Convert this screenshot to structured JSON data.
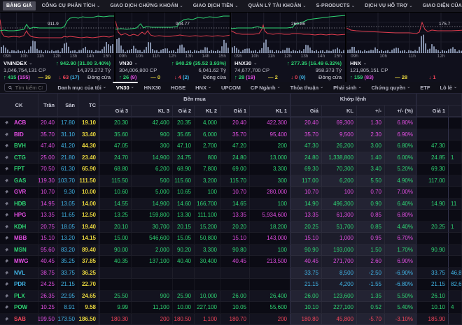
{
  "menu": {
    "items": [
      {
        "label": "BẢNG GIÁ",
        "chev": false,
        "active": true
      },
      {
        "label": "CÔNG CỤ PHÂN TÍCH",
        "chev": true,
        "active": false
      },
      {
        "label": "GIAO DỊCH CHỨNG KHOÁN",
        "chev": true,
        "active": false
      },
      {
        "label": "GIAO DỊCH TIỀN",
        "chev": true,
        "active": false
      },
      {
        "label": "QUẢN LÝ TÀI KHOẢN",
        "chev": true,
        "active": false
      },
      {
        "label": "S-PRODUCTS",
        "chev": true,
        "active": false
      },
      {
        "label": "DỊCH VỤ HỖ TRỢ",
        "chev": true,
        "active": false
      },
      {
        "label": "GIAO DIỆN CỦA TÔI",
        "chev": false,
        "active": false
      }
    ]
  },
  "panels": [
    {
      "name": "VNINDEX",
      "ref_label": "911.9",
      "change": "↑ 942.90 (31.00 3.40%)",
      "volume": "1,046,754,131 CP",
      "value": "14,373.272 Tỷ",
      "up": "↑ 415",
      "up_ceil": "(155)",
      "flat": "39",
      "down": "↓ 63",
      "down_floor": "(17)",
      "status": "Đóng cửa",
      "times": [
        "09h",
        "10h",
        "11h",
        "12h",
        "13h",
        "14h",
        "15h"
      ]
    },
    {
      "name": "VN30",
      "ref_label": "904.77",
      "change": "↑ 940.29 (35.52 3.93%)",
      "volume": "304,006,800 CP",
      "value": "6,041.62 Tỷ",
      "up": "↑ 26",
      "up_ceil": "(9)",
      "flat": "0",
      "down": "↓ 4",
      "down_floor": "(2)",
      "status": "Đóng cửa",
      "times": [
        "09h",
        "10h",
        "11h",
        "12h",
        "13h",
        "14h",
        "15h"
      ]
    },
    {
      "name": "HNX30",
      "ref_label": "260.86",
      "change": "↑ 277.35 (16.49 6.32%)",
      "volume": "74,677,700 CP",
      "value": "958.373 Tỷ",
      "up": "↑ 28",
      "up_ceil": "(19)",
      "flat": "2",
      "down": "↓ 0",
      "down_floor": "(0)",
      "status": "Đóng cửa",
      "times": [
        "09h",
        "10h",
        "11h",
        "12h",
        "13h",
        "14h",
        "15h"
      ]
    },
    {
      "name": "HNX",
      "ref_label": "175.7",
      "change": "",
      "volume": "121,805,151 CP",
      "value": "",
      "up": "↑ 159",
      "up_ceil": "(83)",
      "flat": "28",
      "down": "↓ 1",
      "down_floor": "",
      "status": "",
      "times": [
        "09h",
        "10h",
        "11h",
        "12h"
      ]
    }
  ],
  "tabbar": {
    "search_placeholder": "Tìm kiếm CK",
    "tabs": [
      {
        "label": "Danh mục của tôi",
        "chev": true,
        "active": false
      },
      {
        "label": "VN30",
        "chev": true,
        "active": true
      },
      {
        "label": "HNX30",
        "chev": false,
        "active": false
      },
      {
        "label": "HOSE",
        "chev": false,
        "active": false
      },
      {
        "label": "HNX",
        "chev": true,
        "active": false
      },
      {
        "label": "UPCOM",
        "chev": false,
        "active": false
      },
      {
        "label": "CP Ngành",
        "chev": true,
        "active": false
      },
      {
        "label": "Thỏa thuận",
        "chev": true,
        "active": false
      },
      {
        "label": "Phái sinh",
        "chev": true,
        "active": false
      },
      {
        "label": "Chứng quyền",
        "chev": true,
        "active": false
      },
      {
        "label": "ETF",
        "chev": false,
        "active": false
      },
      {
        "label": "Lô lẻ",
        "chev": true,
        "active": false
      }
    ]
  },
  "table": {
    "groups": {
      "buy": "Bên mua",
      "matched": "Khớp lệnh",
      "sell": ""
    },
    "cols": {
      "ck": "CK",
      "tran": "Trần",
      "san": "Sàn",
      "tc": "TC",
      "g3": "Giá 3",
      "k3": "KL 3",
      "g2": "Giá 2",
      "k2": "KL 2",
      "g1": "Giá 1",
      "k1": "KL 1",
      "gia": "Giá",
      "kl": "KL",
      "chg": "+/-",
      "pct": "+/- (%)",
      "sg1": "Giá 1",
      "sk1": ""
    },
    "rows": [
      {
        "t": "ACB",
        "k": "m",
        "v": [
          "20.40",
          "17.80",
          "19.10",
          "20.30",
          "42,400",
          "20.35",
          "4,000",
          "20.40",
          "422,300",
          "20.40",
          "69,300",
          "1.30",
          "6.80%",
          "",
          ""
        ],
        "c": [
          "m",
          "c",
          "y",
          "g",
          "g",
          "g",
          "g",
          "m",
          "m",
          "m",
          "m",
          "m",
          "m",
          "g",
          "g"
        ]
      },
      {
        "t": "BID",
        "k": "m",
        "v": [
          "35.70",
          "31.10",
          "33.40",
          "35.60",
          "900",
          "35.65",
          "6,000",
          "35.70",
          "95,400",
          "35.70",
          "9,500",
          "2.30",
          "6.90%",
          "",
          ""
        ],
        "c": [
          "m",
          "c",
          "y",
          "g",
          "g",
          "g",
          "g",
          "m",
          "m",
          "m",
          "m",
          "m",
          "m",
          "g",
          "g"
        ]
      },
      {
        "t": "BVH",
        "k": "g",
        "v": [
          "47.40",
          "41.20",
          "44.30",
          "47.05",
          "300",
          "47.10",
          "2,700",
          "47.20",
          "200",
          "47.30",
          "26,200",
          "3.00",
          "6.80%",
          "47.30",
          ""
        ],
        "c": [
          "m",
          "c",
          "y",
          "g",
          "g",
          "g",
          "g",
          "g",
          "g",
          "g",
          "g",
          "g",
          "g",
          "g",
          "g"
        ]
      },
      {
        "t": "CTG",
        "k": "g",
        "v": [
          "25.00",
          "21.80",
          "23.40",
          "24.70",
          "14,900",
          "24.75",
          "800",
          "24.80",
          "13,000",
          "24.80",
          "1,338,800",
          "1.40",
          "6.00%",
          "24.85",
          "1"
        ],
        "c": [
          "m",
          "c",
          "y",
          "g",
          "g",
          "g",
          "g",
          "g",
          "g",
          "g",
          "g",
          "g",
          "g",
          "g",
          "g"
        ]
      },
      {
        "t": "FPT",
        "k": "g",
        "v": [
          "70.50",
          "61.30",
          "65.90",
          "68.80",
          "6,200",
          "68.90",
          "7,800",
          "69.00",
          "3,300",
          "69.30",
          "70,300",
          "3.40",
          "5.20%",
          "69.30",
          ""
        ],
        "c": [
          "m",
          "c",
          "y",
          "g",
          "g",
          "g",
          "g",
          "g",
          "g",
          "g",
          "g",
          "g",
          "g",
          "g",
          "g"
        ]
      },
      {
        "t": "GAS",
        "k": "g",
        "v": [
          "119.30",
          "103.70",
          "111.50",
          "115.50",
          "500",
          "115.60",
          "3,200",
          "115.70",
          "300",
          "117.00",
          "6,200",
          "5.50",
          "4.90%",
          "117.00",
          ""
        ],
        "c": [
          "m",
          "c",
          "y",
          "g",
          "g",
          "g",
          "g",
          "g",
          "g",
          "g",
          "g",
          "g",
          "g",
          "g",
          "g"
        ]
      },
      {
        "t": "GVR",
        "k": "m",
        "v": [
          "10.70",
          "9.30",
          "10.00",
          "10.60",
          "5,000",
          "10.65",
          "100",
          "10.70",
          "280,000",
          "10.70",
          "100",
          "0.70",
          "7.00%",
          "",
          ""
        ],
        "c": [
          "m",
          "c",
          "y",
          "g",
          "g",
          "g",
          "g",
          "m",
          "m",
          "m",
          "m",
          "m",
          "m",
          "g",
          "g"
        ]
      },
      {
        "t": "HDB",
        "k": "g",
        "v": [
          "14.95",
          "13.05",
          "14.00",
          "14.55",
          "14,900",
          "14.60",
          "166,700",
          "14.65",
          "100",
          "14.90",
          "496,300",
          "0.90",
          "6.40%",
          "14.90",
          "11"
        ],
        "c": [
          "m",
          "c",
          "y",
          "g",
          "g",
          "g",
          "g",
          "g",
          "g",
          "g",
          "g",
          "g",
          "g",
          "g",
          "g"
        ]
      },
      {
        "t": "HPG",
        "k": "m",
        "v": [
          "13.35",
          "11.65",
          "12.50",
          "13.25",
          "159,800",
          "13.30",
          "111,100",
          "13.35",
          "5,934,600",
          "13.35",
          "61,300",
          "0.85",
          "6.80%",
          "",
          ""
        ],
        "c": [
          "m",
          "c",
          "y",
          "g",
          "g",
          "g",
          "g",
          "m",
          "m",
          "m",
          "m",
          "m",
          "m",
          "g",
          "g"
        ]
      },
      {
        "t": "KDH",
        "k": "g",
        "v": [
          "20.75",
          "18.05",
          "19.40",
          "20.10",
          "30,700",
          "20.15",
          "15,200",
          "20.20",
          "18,200",
          "20.25",
          "51,700",
          "0.85",
          "4.40%",
          "20.25",
          "1"
        ],
        "c": [
          "m",
          "c",
          "y",
          "g",
          "g",
          "g",
          "g",
          "g",
          "g",
          "g",
          "g",
          "g",
          "g",
          "g",
          "g"
        ]
      },
      {
        "t": "MBB",
        "k": "m",
        "v": [
          "15.10",
          "13.20",
          "14.15",
          "15.00",
          "546,600",
          "15.05",
          "50,800",
          "15.10",
          "143,000",
          "15.10",
          "1,000",
          "0.95",
          "6.70%",
          "",
          ""
        ],
        "c": [
          "m",
          "c",
          "y",
          "g",
          "g",
          "g",
          "g",
          "m",
          "m",
          "m",
          "m",
          "m",
          "m",
          "g",
          "g"
        ]
      },
      {
        "t": "MSN",
        "k": "g",
        "v": [
          "95.60",
          "83.20",
          "89.40",
          "90.00",
          "2,000",
          "90.20",
          "3,300",
          "90.80",
          "100",
          "90.90",
          "193,000",
          "1.50",
          "1.70%",
          "90.90",
          ""
        ],
        "c": [
          "m",
          "c",
          "y",
          "g",
          "g",
          "g",
          "g",
          "g",
          "g",
          "g",
          "g",
          "g",
          "g",
          "g",
          "g"
        ]
      },
      {
        "t": "MWG",
        "k": "m",
        "v": [
          "40.45",
          "35.25",
          "37.85",
          "40.35",
          "137,100",
          "40.40",
          "30,400",
          "40.45",
          "213,500",
          "40.45",
          "271,700",
          "2.60",
          "6.90%",
          "",
          ""
        ],
        "c": [
          "m",
          "c",
          "y",
          "g",
          "g",
          "g",
          "g",
          "m",
          "m",
          "m",
          "m",
          "m",
          "m",
          "g",
          "g"
        ]
      },
      {
        "t": "NVL",
        "k": "c",
        "v": [
          "38.75",
          "33.75",
          "36.25",
          "",
          "",
          "",
          "",
          "",
          "",
          "33.75",
          "8,500",
          "-2.50",
          "-6.90%",
          "33.75",
          "46,8"
        ],
        "c": [
          "m",
          "c",
          "y",
          "c",
          "c",
          "c",
          "c",
          "c",
          "c",
          "c",
          "c",
          "c",
          "c",
          "c",
          "c"
        ]
      },
      {
        "t": "PDR",
        "k": "c",
        "v": [
          "24.25",
          "21.15",
          "22.70",
          "",
          "",
          "",
          "",
          "",
          "",
          "21.15",
          "4,200",
          "-1.55",
          "-6.80%",
          "21.15",
          "82,6"
        ],
        "c": [
          "m",
          "c",
          "y",
          "c",
          "c",
          "c",
          "c",
          "c",
          "c",
          "c",
          "c",
          "c",
          "c",
          "c",
          "c"
        ]
      },
      {
        "t": "PLX",
        "k": "g",
        "v": [
          "26.35",
          "22.95",
          "24.65",
          "25.50",
          "900",
          "25.90",
          "10,000",
          "26.00",
          "26,400",
          "26.00",
          "123,600",
          "1.35",
          "5.50%",
          "26.10",
          ""
        ],
        "c": [
          "m",
          "c",
          "y",
          "g",
          "g",
          "g",
          "g",
          "g",
          "g",
          "g",
          "g",
          "g",
          "g",
          "g",
          "g"
        ]
      },
      {
        "t": "POW",
        "k": "g",
        "v": [
          "10.25",
          "8.91",
          "9.58",
          "9.99",
          "11,100",
          "10.00",
          "227,100",
          "10.05",
          "55,600",
          "10.10",
          "227,100",
          "0.52",
          "5.40%",
          "10.10",
          "4"
        ],
        "c": [
          "m",
          "c",
          "y",
          "g",
          "g",
          "g",
          "g",
          "g",
          "g",
          "g",
          "g",
          "g",
          "g",
          "g",
          "g"
        ]
      },
      {
        "t": "SAB",
        "k": "r",
        "v": [
          "199.50",
          "173.50",
          "186.50",
          "180.30",
          "200",
          "180.50",
          "1,100",
          "180.70",
          "200",
          "180.80",
          "45,800",
          "-5.70",
          "-3.10%",
          "185.90",
          ""
        ],
        "c": [
          "m",
          "c",
          "y",
          "r",
          "r",
          "r",
          "r",
          "r",
          "r",
          "r",
          "r",
          "r",
          "r",
          "r",
          "r"
        ]
      }
    ]
  }
}
